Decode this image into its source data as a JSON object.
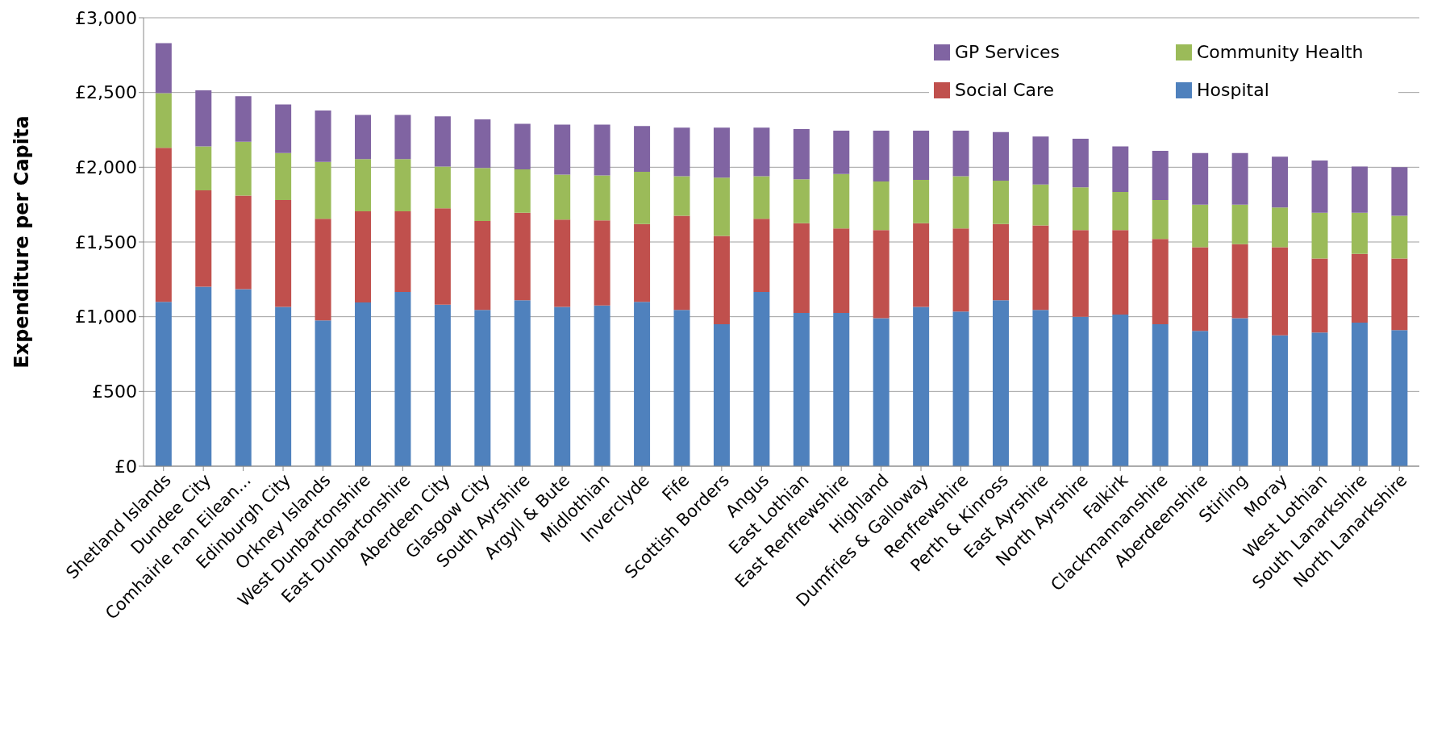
{
  "chart_data": {
    "type": "bar",
    "stacked": true,
    "ylabel": "Expenditure per Capita",
    "categories": [
      "Shetland Islands",
      "Dundee City",
      "Comhairle nan Eilean...",
      "Edinburgh City",
      "Orkney Islands",
      "West Dunbartonshire",
      "East Dunbartonshire",
      "Aberdeen City",
      "Glasgow City",
      "South Ayrshire",
      "Argyll & Bute",
      "Midlothian",
      "Inverclyde",
      "Fife",
      "Scottish Borders",
      "Angus",
      "East Lothian",
      "East Renfrewshire",
      "Highland",
      "Dumfries & Galloway",
      "Renfrewshire",
      "Perth & Kinross",
      "East Ayrshire",
      "North Ayrshire",
      "Falkirk",
      "Clackmannanshire",
      "Aberdeenshire",
      "Stirling",
      "Moray",
      "West Lothian",
      "South Lanarkshire",
      "North Lanarkshire"
    ],
    "series": [
      {
        "name": "Hospital",
        "color": "#4f81bd",
        "values": [
          1100,
          1200,
          1185,
          1065,
          975,
          1095,
          1165,
          1080,
          1045,
          1110,
          1065,
          1075,
          1100,
          1045,
          950,
          1165,
          1025,
          1025,
          990,
          1065,
          1035,
          1110,
          1045,
          1000,
          1015,
          950,
          905,
          990,
          875,
          895,
          960,
          910
        ]
      },
      {
        "name": "Social Care",
        "color": "#c0504d",
        "values": [
          1030,
          645,
          625,
          715,
          680,
          610,
          540,
          645,
          595,
          585,
          585,
          570,
          520,
          630,
          590,
          490,
          600,
          565,
          590,
          560,
          555,
          510,
          565,
          580,
          565,
          570,
          560,
          495,
          590,
          495,
          460,
          480
        ]
      },
      {
        "name": "Community Health",
        "color": "#9bbb59",
        "values": [
          365,
          295,
          360,
          315,
          380,
          350,
          350,
          280,
          355,
          290,
          300,
          300,
          350,
          265,
          390,
          285,
          295,
          365,
          325,
          290,
          350,
          290,
          275,
          285,
          255,
          260,
          285,
          265,
          265,
          305,
          275,
          285
        ]
      },
      {
        "name": "GP Services",
        "color": "#8064a2",
        "values": [
          335,
          375,
          305,
          325,
          345,
          295,
          295,
          335,
          325,
          305,
          335,
          340,
          305,
          325,
          335,
          325,
          335,
          290,
          340,
          330,
          305,
          325,
          320,
          325,
          305,
          330,
          345,
          345,
          340,
          350,
          310,
          325
        ]
      }
    ],
    "ylim": [
      0,
      3000
    ],
    "yticks": [
      {
        "value": 0,
        "label": "£0"
      },
      {
        "value": 500,
        "label": "£500"
      },
      {
        "value": 1000,
        "label": "£1,000"
      },
      {
        "value": 1500,
        "label": "£1,500"
      },
      {
        "value": 2000,
        "label": "£2,000"
      },
      {
        "value": 2500,
        "label": "£2,500"
      },
      {
        "value": 3000,
        "label": "£3,000"
      }
    ],
    "grid": "y",
    "legend": "top right"
  }
}
